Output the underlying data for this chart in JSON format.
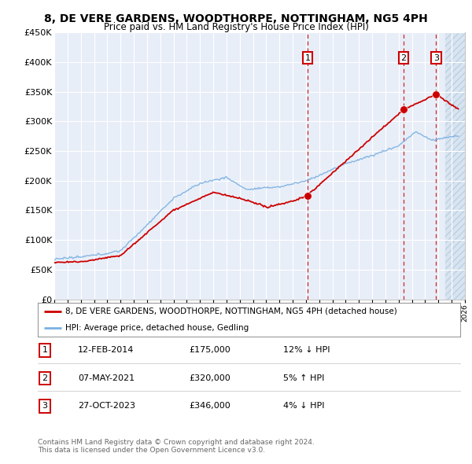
{
  "title": "8, DE VERE GARDENS, WOODTHORPE, NOTTINGHAM, NG5 4PH",
  "subtitle": "Price paid vs. HM Land Registry's House Price Index (HPI)",
  "xmin": 1995,
  "xmax": 2026,
  "ymin": 0,
  "ymax": 450000,
  "yticks": [
    0,
    50000,
    100000,
    150000,
    200000,
    250000,
    300000,
    350000,
    400000,
    450000
  ],
  "ytick_labels": [
    "£0",
    "£50K",
    "£100K",
    "£150K",
    "£200K",
    "£250K",
    "£300K",
    "£350K",
    "£400K",
    "£450K"
  ],
  "legend_line1": "8, DE VERE GARDENS, WOODTHORPE, NOTTINGHAM, NG5 4PH (detached house)",
  "legend_line2": "HPI: Average price, detached house, Gedling",
  "sale1_date": "12-FEB-2014",
  "sale1_price": 175000,
  "sale1_hpi": "12% ↓ HPI",
  "sale1_year": 2014.12,
  "sale2_date": "07-MAY-2021",
  "sale2_price": 320000,
  "sale2_hpi": "5% ↑ HPI",
  "sale2_year": 2021.37,
  "sale3_date": "27-OCT-2023",
  "sale3_price": 346000,
  "sale3_hpi": "4% ↓ HPI",
  "sale3_year": 2023.82,
  "copyright": "Contains HM Land Registry data © Crown copyright and database right 2024.\nThis data is licensed under the Open Government Licence v3.0.",
  "hpi_color": "#7ab0e0",
  "price_color": "#cc0000",
  "dashed_color": "#cc0000",
  "bg_color": "#e8eef8",
  "hatch_bg_color": "#d8e4f0",
  "grid_color": "#ffffff",
  "border_color": "#cc0000",
  "future_start": 2024.5
}
